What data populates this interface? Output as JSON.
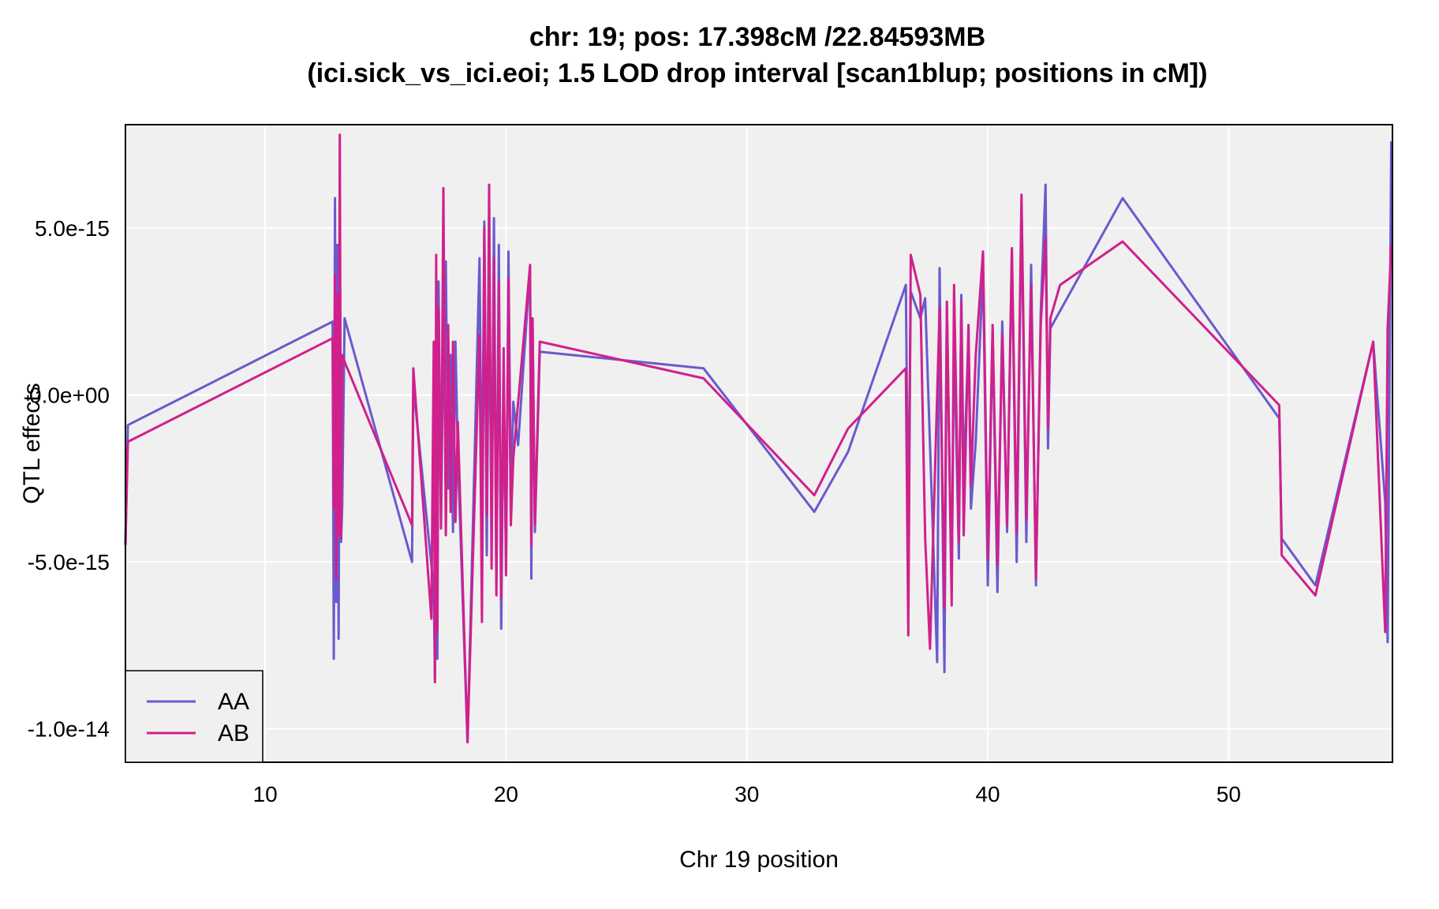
{
  "chart_data": {
    "type": "line",
    "title": "chr: 19; pos: 17.398cM /22.84593MB",
    "subtitle": "(ici.sick_vs_ici.eoi; 1.5 LOD drop interval [scan1blup; positions in cM])",
    "xlabel": "Chr 19 position",
    "ylabel": "QTL effects",
    "xlim": [
      4.2,
      56.8
    ],
    "ylim": [
      -1.1e-14,
      8.1e-15
    ],
    "x_ticks": [
      10,
      20,
      30,
      40,
      50
    ],
    "x_tick_labels": [
      "10",
      "20",
      "30",
      "40",
      "50"
    ],
    "y_ticks": [
      -1e-14,
      -5e-15,
      0,
      5e-15
    ],
    "y_tick_labels": [
      "-1.0e-14",
      "-5.0e-15",
      "0.0e+00",
      "5.0e-15"
    ],
    "grid": true,
    "legend_position": "bottom-left",
    "series": [
      {
        "name": "AA",
        "color": "#6a5acd",
        "x": [
          4.2,
          4.3,
          12.8,
          12.85,
          12.9,
          12.95,
          13.0,
          13.05,
          13.1,
          13.15,
          13.2,
          13.3,
          16.1,
          16.15,
          17.0,
          17.05,
          17.1,
          17.15,
          17.2,
          17.3,
          17.4,
          17.5,
          17.6,
          17.7,
          17.8,
          17.9,
          18.0,
          18.4,
          18.9,
          19.0,
          19.1,
          19.2,
          19.3,
          19.4,
          19.5,
          19.6,
          19.7,
          19.8,
          19.9,
          20.0,
          20.1,
          20.2,
          20.3,
          20.5,
          21.0,
          21.05,
          21.1,
          21.2,
          21.4,
          28.2,
          32.8,
          34.2,
          36.6,
          36.7,
          36.8,
          37.2,
          37.4,
          37.9,
          38.0,
          38.2,
          38.3,
          38.5,
          38.6,
          38.8,
          38.9,
          39.0,
          39.2,
          39.3,
          39.5,
          39.8,
          40.0,
          40.2,
          40.4,
          40.6,
          40.8,
          41.0,
          41.2,
          41.4,
          41.6,
          41.8,
          42.0,
          42.2,
          42.4,
          42.5,
          42.6,
          45.6,
          52.1,
          52.2,
          53.6,
          56.0,
          56.5,
          56.6,
          56.75
        ],
        "values": [
          -4.5e-15,
          -9e-16,
          2.2e-15,
          -7.9e-15,
          5.9e-15,
          -6.2e-15,
          4.5e-15,
          -7.3e-15,
          2.3e-15,
          -4.4e-15,
          -3.3e-15,
          2.3e-15,
          -5e-15,
          3e-16,
          -5.8e-15,
          -8.5e-15,
          1.2e-15,
          -7.9e-15,
          3.4e-15,
          -3.8e-15,
          1.5e-15,
          4e-15,
          -2.8e-15,
          1.2e-15,
          -4.1e-15,
          1.6e-15,
          -1.8e-15,
          -1.04e-14,
          4.1e-15,
          -3.9e-15,
          5.2e-15,
          -4.8e-15,
          3.9e-15,
          -4.3e-15,
          5.3e-15,
          -5.6e-15,
          4.5e-15,
          -7e-15,
          4e-16,
          -4.9e-15,
          4.3e-15,
          -3.2e-15,
          -2e-16,
          -1.5e-15,
          3.8e-15,
          -5.5e-15,
          2.3e-15,
          -4.1e-15,
          1.3e-15,
          8e-16,
          -3.5e-15,
          -1.7e-15,
          3.3e-15,
          -4.3e-15,
          3.1e-15,
          2.3e-15,
          2.9e-15,
          -8e-15,
          3.8e-15,
          -8.3e-15,
          2.7e-15,
          -5.9e-15,
          1.9e-15,
          -4.9e-15,
          3e-15,
          -2.6e-15,
          1.7e-15,
          -3.4e-15,
          -1.4e-15,
          3.8e-15,
          -5.7e-15,
          1.9e-15,
          -5.9e-15,
          2.2e-15,
          -4.1e-15,
          4.3e-15,
          -5e-15,
          5.7e-15,
          -4.4e-15,
          3.9e-15,
          -5.7e-15,
          2.5e-15,
          6.3e-15,
          -1.6e-15,
          2e-15,
          5.9e-15,
          -7e-16,
          -4.3e-15,
          -5.7e-15,
          1.6e-15,
          -3.2e-15,
          -7.4e-15,
          7.6e-15
        ]
      },
      {
        "name": "AB",
        "color": "#d0208c",
        "x": [
          4.2,
          4.3,
          12.8,
          12.85,
          12.9,
          12.95,
          13.0,
          13.05,
          13.1,
          13.15,
          13.2,
          13.3,
          16.1,
          16.15,
          16.9,
          17.0,
          17.05,
          17.1,
          17.15,
          17.2,
          17.3,
          17.4,
          17.5,
          17.6,
          17.7,
          17.8,
          17.9,
          18.0,
          18.4,
          18.9,
          19.0,
          19.1,
          19.2,
          19.3,
          19.4,
          19.5,
          19.6,
          19.7,
          19.8,
          19.9,
          20.0,
          20.1,
          20.2,
          20.3,
          21.0,
          21.05,
          21.1,
          21.2,
          21.4,
          28.2,
          32.8,
          34.2,
          36.6,
          36.7,
          36.8,
          37.2,
          37.4,
          37.6,
          38.0,
          38.2,
          38.3,
          38.5,
          38.6,
          38.8,
          38.9,
          39.0,
          39.2,
          39.3,
          39.5,
          39.8,
          40.0,
          40.2,
          40.4,
          40.6,
          40.8,
          41.0,
          41.2,
          41.4,
          41.6,
          41.8,
          42.0,
          42.2,
          42.4,
          42.5,
          42.6,
          43.0,
          45.6,
          52.1,
          52.2,
          53.6,
          56.0,
          56.5,
          56.6,
          56.75
        ],
        "values": [
          -4.5e-15,
          -1.4e-15,
          1.7e-15,
          -3.4e-15,
          3.6e-15,
          -5.5e-15,
          3e-15,
          -4.2e-15,
          7.8e-15,
          -4.3e-15,
          1.2e-15,
          1e-15,
          -3.9e-15,
          8e-16,
          -6.7e-15,
          1.6e-15,
          -8.6e-15,
          4.2e-15,
          -7.1e-15,
          2.6e-15,
          -4e-15,
          6.2e-15,
          -4.2e-15,
          2.1e-15,
          -3.5e-15,
          1.6e-15,
          -3.8e-15,
          -8e-16,
          -1.04e-14,
          1.8e-15,
          -6.8e-15,
          5e-15,
          -3.6e-15,
          6.3e-15,
          -5.2e-15,
          4.1e-15,
          -6e-15,
          3.4e-15,
          -6.1e-15,
          1.4e-15,
          -5.4e-15,
          3.5e-15,
          -3.9e-15,
          -1.9e-15,
          3.9e-15,
          -4.5e-15,
          2.3e-15,
          -3.9e-15,
          1.6e-15,
          5e-16,
          -3e-15,
          -1e-15,
          8e-16,
          -7.2e-15,
          4.2e-15,
          3e-15,
          -4.3e-15,
          -7.6e-15,
          2.6e-15,
          -6.4e-15,
          2.8e-15,
          -6.3e-15,
          3.3e-15,
          -4.4e-15,
          2.8e-15,
          -4.2e-15,
          2.1e-15,
          -2.7e-15,
          1.2e-15,
          4.3e-15,
          -4.9e-15,
          2.1e-15,
          -5.1e-15,
          1.8e-15,
          -3.9e-15,
          4.4e-15,
          -4.1e-15,
          6e-15,
          -3.7e-15,
          3.3e-15,
          -5.5e-15,
          2.1e-15,
          4.7e-15,
          -1e-15,
          2.3e-15,
          3.3e-15,
          4.6e-15,
          -3e-16,
          -4.8e-15,
          -6e-15,
          1.6e-15,
          -7.1e-15,
          2e-15,
          4.5e-15
        ]
      }
    ]
  }
}
